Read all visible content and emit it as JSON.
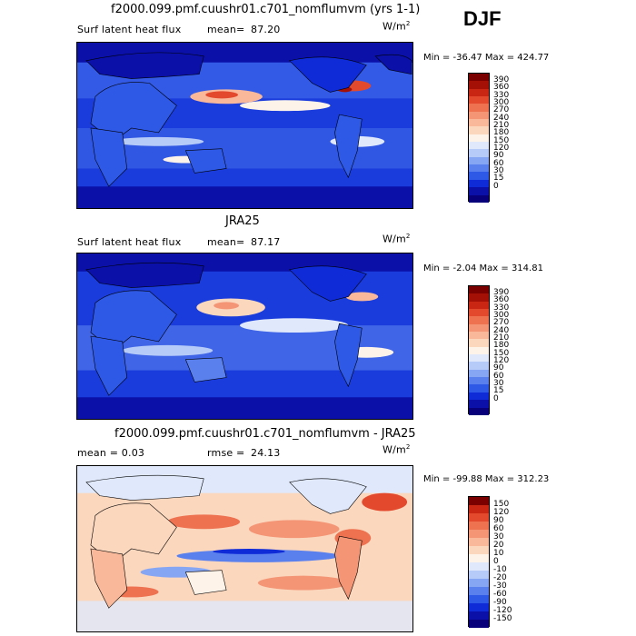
{
  "season": "DJF",
  "units": "W/m",
  "units_sup": "2",
  "colors": {
    "abs_levels": [
      "#08007a",
      "#0a10a8",
      "#0f2bd8",
      "#2e58e6",
      "#5a80ee",
      "#86a6f4",
      "#b6cbf8",
      "#dfe9fb",
      "#fdf3e8",
      "#fbd7be",
      "#f8b899",
      "#f49575",
      "#ee7150",
      "#e34a2d",
      "#c92714",
      "#a40f06",
      "#7a0000"
    ],
    "diff_levels": [
      "#08007a",
      "#0a10a8",
      "#0f2bd8",
      "#2e58e6",
      "#5a80ee",
      "#86a6f4",
      "#b6cbf8",
      "#dfe9fb",
      "#fdf3e8",
      "#fbd7be",
      "#f8b899",
      "#f49575",
      "#ee7150",
      "#e34a2d",
      "#c92714",
      "#7a0000"
    ]
  },
  "panels": [
    {
      "title": "f2000.099.pmf.cuushr01.c701_nomflumvm (yrs 1-1)",
      "left_text": "Surf latent heat flux",
      "stat_label": "mean=",
      "stat_value": "87.20",
      "minmax": "Min = -36.47 Max = 424.77",
      "colorbar_labels": [
        "390",
        "360",
        "330",
        "300",
        "270",
        "240",
        "210",
        "180",
        "150",
        "120",
        "90",
        "60",
        "30",
        "15",
        "0"
      ]
    },
    {
      "title": "JRA25",
      "left_text": "Surf latent heat flux",
      "stat_label": "mean=",
      "stat_value": "87.17",
      "minmax": "Min = -2.04 Max = 314.81",
      "colorbar_labels": [
        "390",
        "360",
        "330",
        "300",
        "270",
        "240",
        "210",
        "180",
        "150",
        "120",
        "90",
        "60",
        "30",
        "15",
        "0"
      ]
    },
    {
      "title": "f2000.099.pmf.cuushr01.c701_nomflumvm - JRA25",
      "left_text": "mean = 0.03",
      "stat_label": "rmse =",
      "stat_value": "24.13",
      "minmax": "Min = -99.88 Max = 312.23",
      "colorbar_labels": [
        "150",
        "120",
        "90",
        "60",
        "30",
        "20",
        "10",
        "0",
        "-10",
        "-20",
        "-30",
        "-60",
        "-90",
        "-120",
        "-150"
      ]
    }
  ],
  "chart_data": [
    {
      "type": "heatmap",
      "title": "f2000.099.pmf.cuushr01.c701_nomflumvm (yrs 1-1)",
      "variable": "Surf latent heat flux",
      "units": "W/m2",
      "mean": 87.2,
      "min": -36.47,
      "max": 424.77,
      "contour_levels": [
        0,
        15,
        30,
        60,
        90,
        120,
        150,
        180,
        210,
        240,
        270,
        300,
        330,
        360,
        390
      ]
    },
    {
      "type": "heatmap",
      "title": "JRA25",
      "variable": "Surf latent heat flux",
      "units": "W/m2",
      "mean": 87.17,
      "min": -2.04,
      "max": 314.81,
      "contour_levels": [
        0,
        15,
        30,
        60,
        90,
        120,
        150,
        180,
        210,
        240,
        270,
        300,
        330,
        360,
        390
      ]
    },
    {
      "type": "heatmap",
      "title": "f2000.099.pmf.cuushr01.c701_nomflumvm - JRA25",
      "units": "W/m2",
      "mean": 0.03,
      "rmse": 24.13,
      "min": -99.88,
      "max": 312.23,
      "contour_levels": [
        -150,
        -120,
        -90,
        -60,
        -30,
        -20,
        -10,
        0,
        10,
        20,
        30,
        60,
        90,
        120,
        150
      ]
    }
  ]
}
